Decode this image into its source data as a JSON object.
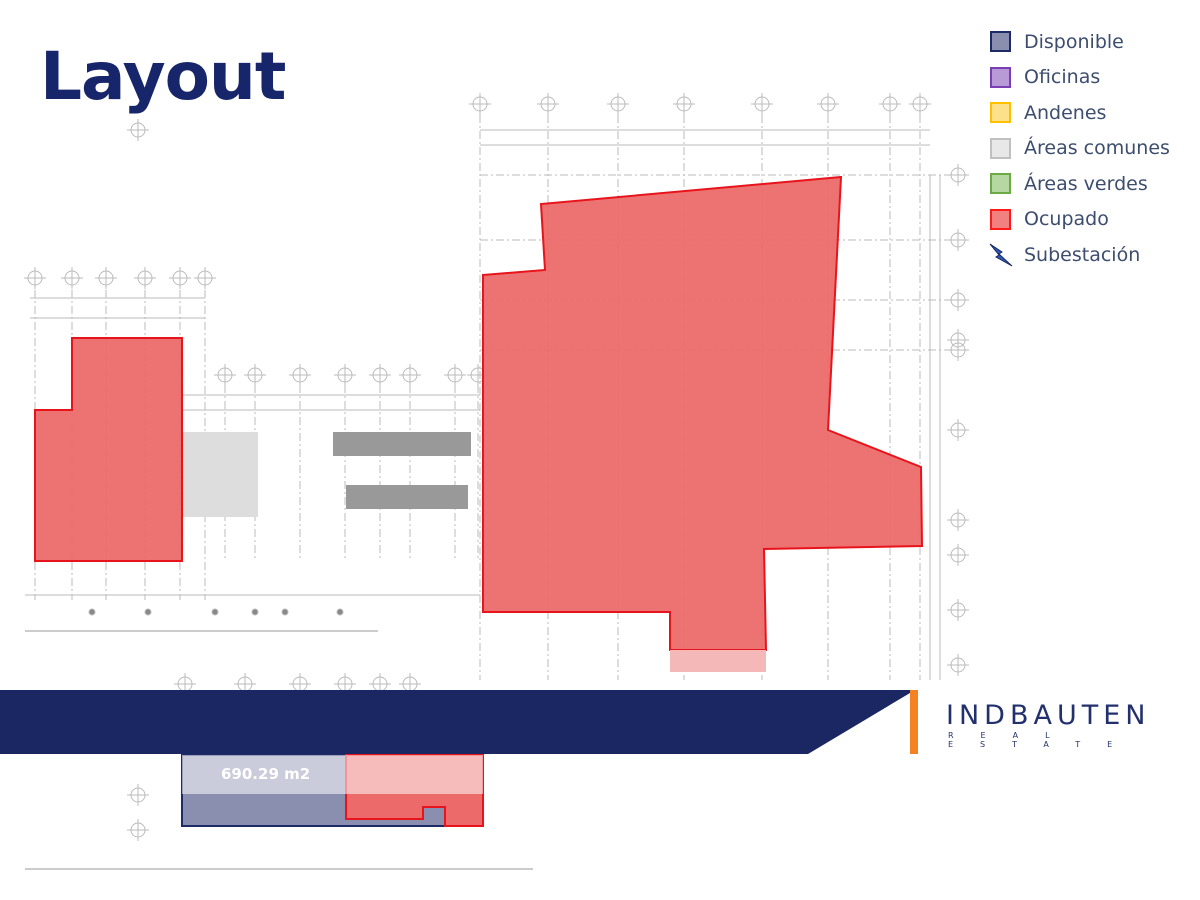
{
  "page": {
    "title": "Layout"
  },
  "legend": [
    {
      "label": "Disponible",
      "fill": "#8a8fb0",
      "border": "#1e2a68"
    },
    {
      "label": "Oficinas",
      "fill": "#b79ad6",
      "border": "#7a3fb5"
    },
    {
      "label": "Andenes",
      "fill": "#fde08a",
      "border": "#ffc000"
    },
    {
      "label": "Áreas comunes",
      "fill": "#e8e8e8",
      "border": "#c0c0c0"
    },
    {
      "label": "Áreas verdes",
      "fill": "#b7d7a2",
      "border": "#6aab45"
    },
    {
      "label": "Ocupado",
      "fill": "#f28080",
      "border": "#ff1a1a"
    },
    {
      "label": "Subestación",
      "icon": "lightning-bolt-icon",
      "color": "#2d56b5"
    }
  ],
  "plan": {
    "area_label": "690.29 m2",
    "colors": {
      "occupied": "#ec6a6a",
      "occupied_border": "#e8141b",
      "available": "#8a8fb0",
      "available_border": "#1e2a68"
    }
  },
  "banner": {
    "color": "#1a2762",
    "accent": "#f58220"
  },
  "logo": {
    "name": "INDBAUTEN",
    "tagline": "REAL ESTATE"
  }
}
